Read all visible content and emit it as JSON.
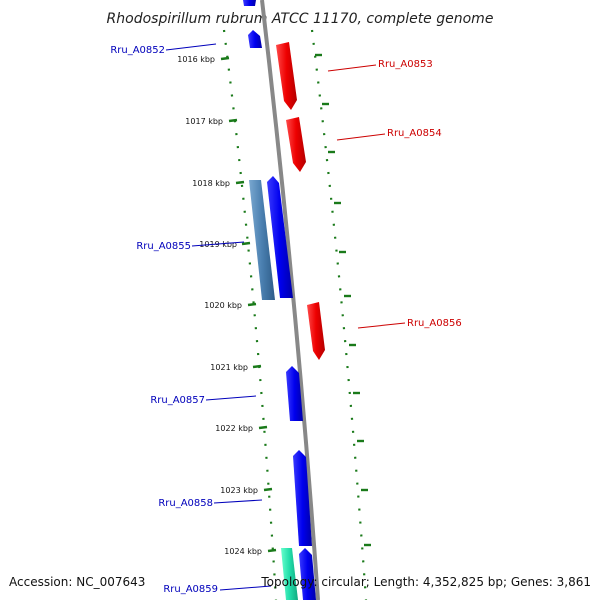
{
  "title": "Rhodospirillum rubrum ATCC 11170, complete genome",
  "accession_label": "Accession: NC_007643",
  "topology_label": "Topology: circular; Length: 4,352,825 bp; Genes: 3,861",
  "colors": {
    "forward_gene": "#ee0000",
    "reverse_gene": "#0000ee",
    "rna_gene": "#4a7fb0",
    "cyan_gene": "#22ddaa",
    "backbone": "#888888",
    "tick": "#1a7a1a",
    "label_forward": "#cc0000",
    "label_reverse": "#0000bb"
  },
  "kbp_ticks": [
    "1016 kbp",
    "1017 kbp",
    "1018 kbp",
    "1019 kbp",
    "1020 kbp",
    "1021 kbp",
    "1022 kbp",
    "1023 kbp",
    "1024 kbp"
  ],
  "gene_labels": [
    {
      "name": "Rru_A0852",
      "strand": "reverse"
    },
    {
      "name": "Rru_A0853",
      "strand": "forward"
    },
    {
      "name": "Rru_A0854",
      "strand": "forward"
    },
    {
      "name": "Rru_A0855",
      "strand": "reverse"
    },
    {
      "name": "Rru_A0856",
      "strand": "forward"
    },
    {
      "name": "Rru_A0857",
      "strand": "reverse"
    },
    {
      "name": "Rru_A0858",
      "strand": "reverse"
    },
    {
      "name": "Rru_A0859",
      "strand": "reverse"
    }
  ]
}
